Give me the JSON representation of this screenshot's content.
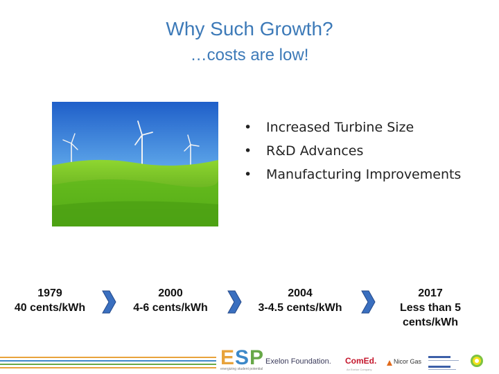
{
  "slide": {
    "title": "Why Such Growth?",
    "subtitle": "…costs are low!"
  },
  "photo": {
    "subject": "wind turbines over a green field",
    "colors": {
      "sky": "#2a6fd6",
      "sky_light": "#9fd0f5",
      "grass": "#6dc21c",
      "grass_dark": "#3f8c10"
    }
  },
  "bullets": [
    "Increased Turbine Size",
    "R&D Advances",
    "Manufacturing Improvements"
  ],
  "timeline": [
    {
      "year": "1979",
      "cost_lines": [
        "40 cents/kWh"
      ]
    },
    {
      "year": "2000",
      "cost_lines": [
        "4-6 cents/kWh"
      ]
    },
    {
      "year": "2004",
      "cost_lines": [
        "3-4.5 cents/kWh"
      ]
    },
    {
      "year": "2017",
      "cost_lines": [
        "Less than 5",
        "cents/kWh"
      ]
    }
  ],
  "arrow_icon": "chevron-right-icon",
  "colors": {
    "title": "#3d7ab8",
    "chevron": "#3a6fbf",
    "chevron_dark": "#24498a"
  },
  "footer": {
    "stripe_colors": [
      "#e8a33b",
      "#3c88c8",
      "#67a848",
      "#e8a33b"
    ],
    "esp_letters": [
      "E",
      "S",
      "P"
    ],
    "esp_tagline": "energizing student potential",
    "exelon_name": "Exelon",
    "exelon_suffix": " Foundation.",
    "comed_logo": "ComEd.",
    "comed_tagline": "An Exelon Company",
    "nicor_logo": "Nicor Gas"
  }
}
